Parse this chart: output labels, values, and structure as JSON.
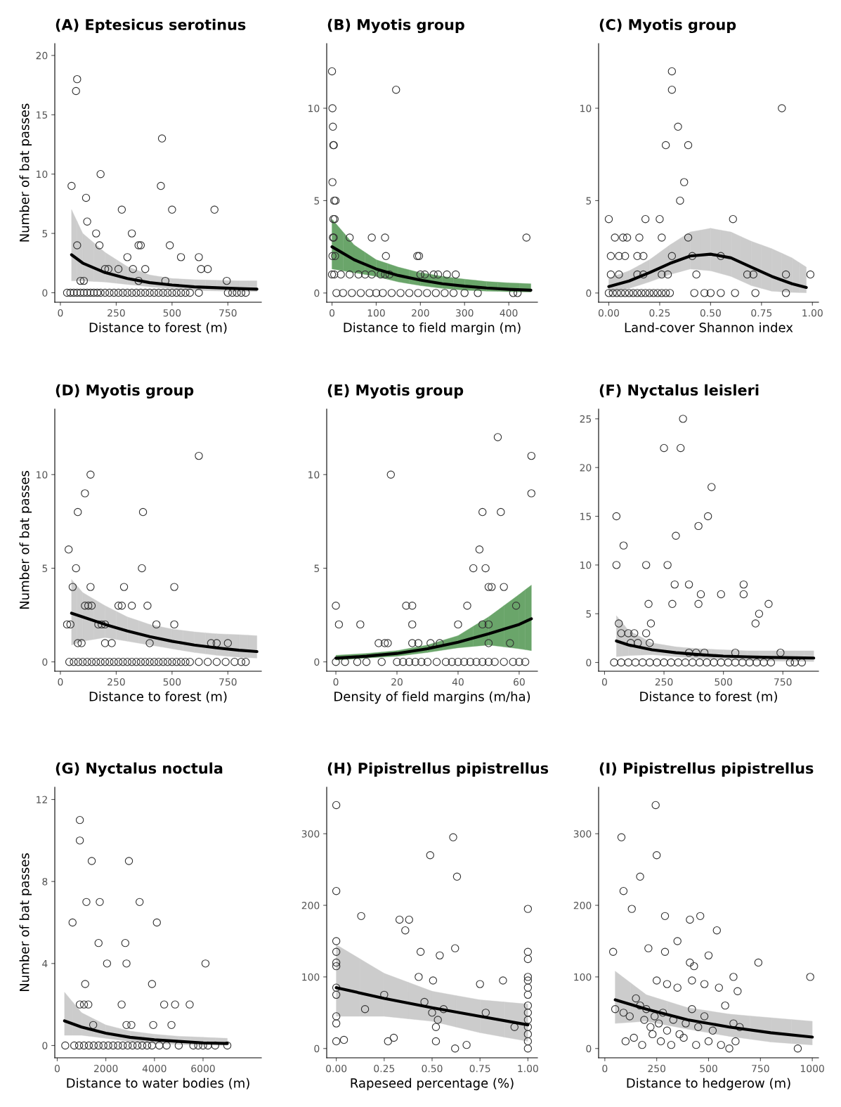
{
  "chart_data": [
    {
      "type": "scatter",
      "title": "(A) Eptesicus serotinus",
      "xlabel": "Distance to forest (m)",
      "ylabel": "Number of bat passes",
      "xlim": [
        -25,
        900
      ],
      "ylim": [
        -0.8,
        21
      ],
      "xticks": [
        0,
        250,
        500,
        750
      ],
      "yticks": [
        0,
        5,
        10,
        15,
        20
      ],
      "series": [
        {
          "marker": "circle",
          "color": "#333333",
          "x": [
            75,
            70,
            50,
            75,
            115,
            120,
            160,
            175,
            180,
            275,
            300,
            320,
            325,
            350,
            360,
            380,
            450,
            455,
            500,
            490,
            540,
            620,
            630,
            660,
            690,
            745,
            200,
            215,
            260,
            90,
            105,
            350,
            470,
            30,
            45,
            60,
            75,
            90,
            105,
            120,
            135,
            150,
            165,
            180,
            200,
            220,
            240,
            260,
            280,
            300,
            320,
            340,
            360,
            380,
            400,
            420,
            440,
            460,
            480,
            500,
            520,
            540,
            560,
            580,
            620,
            750,
            770,
            790,
            810,
            830
          ],
          "values": [
            18,
            17,
            9,
            4,
            8,
            6,
            5,
            4,
            10,
            7,
            3,
            5,
            2,
            4,
            4,
            2,
            9,
            13,
            7,
            4,
            3,
            3,
            2,
            2,
            7,
            1,
            2,
            2,
            2,
            1,
            1,
            1,
            1,
            0,
            0,
            0,
            0,
            0,
            0,
            0,
            0,
            0,
            0,
            0,
            0,
            0,
            0,
            0,
            0,
            0,
            0,
            0,
            0,
            0,
            0,
            0,
            0,
            0,
            0,
            0,
            0,
            0,
            0,
            0,
            0,
            0,
            0,
            0,
            0,
            0
          ]
        },
        {
          "type": "line",
          "color": "#000000",
          "colors": [
            "#cccccc",
            "#cccccc",
            "#cccccc",
            "#cccccc",
            "#cccccc",
            "#cccccc",
            "#cccccc",
            "#cccccc",
            "#cccccc",
            "#cccccc"
          ],
          "x": [
            50,
            100,
            200,
            300,
            400,
            500,
            600,
            700,
            800,
            880
          ],
          "values": [
            3.2,
            2.5,
            1.7,
            1.2,
            0.85,
            0.65,
            0.5,
            0.42,
            0.35,
            0.3
          ],
          "lower": [
            1.0,
            1.0,
            0.9,
            0.7,
            0.5,
            0.35,
            0.2,
            0.15,
            0.12,
            0.1
          ],
          "upper": [
            7.0,
            5.0,
            3.4,
            2.2,
            1.5,
            1.2,
            1.1,
            1.05,
            1.0,
            1.0
          ]
        }
      ]
    },
    {
      "type": "scatter",
      "title": "(B) Myotis group",
      "xlabel": "Distance to field margin (m)",
      "xlim": [
        -12,
        465
      ],
      "ylim": [
        -0.5,
        13.5
      ],
      "xticks": [
        0,
        100,
        200,
        300,
        400
      ],
      "yticks": [
        0,
        5,
        10
      ],
      "series": [
        {
          "marker": "circle",
          "color": "#333333",
          "x": [
            0,
            1,
            2,
            3,
            4,
            1,
            5,
            8,
            3,
            6,
            2,
            4,
            1,
            7,
            0,
            5,
            145,
            40,
            90,
            120,
            122,
            193,
            197,
            440,
            20,
            40,
            60,
            75,
            90,
            110,
            120,
            130,
            200,
            210,
            230,
            240,
            260,
            280,
            10,
            25,
            45,
            65,
            85,
            100,
            115,
            135,
            155,
            175,
            195,
            215,
            235,
            255,
            275,
            300,
            330,
            410,
            420
          ],
          "values": [
            12,
            10,
            9,
            8,
            8,
            6,
            5,
            5,
            4,
            4,
            3,
            3,
            2,
            2,
            1,
            1,
            11,
            3,
            3,
            3,
            2,
            2,
            2,
            3,
            1,
            1,
            1,
            1,
            1,
            1,
            1,
            1,
            1,
            1,
            1,
            1,
            1,
            1,
            0,
            0,
            0,
            0,
            0,
            0,
            0,
            0,
            0,
            0,
            0,
            0,
            0,
            0,
            0,
            0,
            0,
            0,
            0
          ]
        },
        {
          "type": "line",
          "color": "#000000",
          "colors": [
            "#6aa56a",
            "#6aa56a",
            "#6aa56a",
            "#6aa56a",
            "#6aa56a",
            "#6aa56a",
            "#6aa56a",
            "#6aa56a",
            "#6aa56a",
            "#6aa56a"
          ],
          "x": [
            0,
            50,
            100,
            150,
            200,
            250,
            300,
            350,
            400,
            450
          ],
          "values": [
            2.5,
            1.8,
            1.3,
            0.95,
            0.7,
            0.5,
            0.37,
            0.27,
            0.2,
            0.15
          ],
          "lower": [
            1.3,
            1.1,
            0.9,
            0.6,
            0.4,
            0.25,
            0.15,
            0.1,
            0.07,
            0.05
          ],
          "upper": [
            4.0,
            2.6,
            1.8,
            1.4,
            1.1,
            0.9,
            0.75,
            0.62,
            0.55,
            0.5
          ]
        }
      ]
    },
    {
      "type": "scatter",
      "title": "(C) Myotis group",
      "xlabel": "Land-cover Shannon index",
      "xlim": [
        -0.05,
        1.03
      ],
      "ylim": [
        -0.5,
        13.5
      ],
      "xticks": [
        {
          "value": 0,
          "label": "0.00"
        },
        {
          "value": 0.25,
          "label": "0.25"
        },
        {
          "value": 0.5,
          "label": "0.50"
        },
        {
          "value": 0.75,
          "label": "0.75"
        },
        {
          "value": 1,
          "label": "1.00"
        }
      ],
      "yticks": [
        0,
        5,
        10
      ],
      "series": [
        {
          "marker": "circle",
          "color": "#333333",
          "x": [
            0.31,
            0.31,
            0.85,
            0.34,
            0.28,
            0.39,
            0.37,
            0.35,
            0.0,
            0.18,
            0.25,
            0.61,
            0.03,
            0.07,
            0.09,
            0.15,
            0.26,
            0.39,
            0.01,
            0.05,
            0.08,
            0.14,
            0.17,
            0.31,
            0.41,
            0.55,
            0.01,
            0.05,
            0.14,
            0.17,
            0.26,
            0.29,
            0.43,
            0.68,
            0.71,
            0.87,
            0.99,
            0.0,
            0.02,
            0.04,
            0.06,
            0.08,
            0.1,
            0.12,
            0.14,
            0.16,
            0.18,
            0.2,
            0.22,
            0.24,
            0.26,
            0.28,
            0.3,
            0.42,
            0.47,
            0.5,
            0.55,
            0.62,
            0.72,
            0.87
          ],
          "values": [
            12,
            11,
            10,
            9,
            8,
            8,
            6,
            5,
            4,
            4,
            4,
            4,
            3,
            3,
            3,
            3,
            3,
            3,
            2,
            2,
            2,
            2,
            2,
            2,
            2,
            2,
            1,
            1,
            1,
            1,
            1,
            1,
            1,
            1,
            1,
            1,
            1,
            0,
            0,
            0,
            0,
            0,
            0,
            0,
            0,
            0,
            0,
            0,
            0,
            0,
            0,
            0,
            0,
            0,
            0,
            0,
            0,
            0,
            0,
            0
          ]
        },
        {
          "type": "line",
          "color": "#000000",
          "colors": [
            "#cccccc",
            "#cccccc",
            "#cccccc",
            "#cccccc",
            "#cccccc",
            "#cccccc",
            "#cccccc",
            "#cccccc",
            "#cccccc",
            "#cccccc",
            "#cccccc"
          ],
          "x": [
            0,
            0.1,
            0.2,
            0.3,
            0.4,
            0.5,
            0.6,
            0.7,
            0.8,
            0.9,
            0.97
          ],
          "values": [
            0.35,
            0.65,
            1.1,
            1.6,
            2.0,
            2.1,
            1.9,
            1.4,
            0.9,
            0.5,
            0.3
          ],
          "lower": [
            0.05,
            0.25,
            0.6,
            1.0,
            1.3,
            1.2,
            0.9,
            0.4,
            0.1,
            0.03,
            0.01
          ],
          "upper": [
            0.8,
            1.2,
            1.8,
            2.6,
            3.3,
            3.5,
            3.3,
            2.8,
            2.4,
            1.9,
            1.4
          ]
        }
      ]
    },
    {
      "type": "scatter",
      "title": "(D) Myotis group",
      "xlabel": "Distance to forest (m)",
      "ylabel": "Number of bat passes",
      "xlim": [
        -25,
        900
      ],
      "ylim": [
        -0.5,
        13.5
      ],
      "xticks": [
        0,
        250,
        500,
        750
      ],
      "yticks": [
        0,
        5,
        10
      ],
      "series": [
        {
          "marker": "circle",
          "color": "#333333",
          "x": [
            37,
            55,
            78,
            70,
            110,
            135,
            135,
            110,
            125,
            140,
            30,
            45,
            170,
            185,
            200,
            78,
            95,
            200,
            230,
            260,
            275,
            285,
            320,
            370,
            365,
            390,
            430,
            400,
            510,
            510,
            620,
            675,
            700,
            750,
            40,
            60,
            80,
            100,
            120,
            140,
            160,
            180,
            200,
            220,
            240,
            260,
            280,
            300,
            320,
            340,
            360,
            380,
            400,
            420,
            440,
            460,
            480,
            500,
            520,
            540,
            560,
            580,
            620,
            660,
            700,
            740,
            780,
            810,
            830
          ],
          "values": [
            6,
            4,
            8,
            5,
            9,
            10,
            4,
            3,
            3,
            3,
            2,
            2,
            2,
            2,
            2,
            1,
            1,
            1,
            1,
            3,
            3,
            4,
            3,
            8,
            5,
            3,
            2,
            1,
            4,
            2,
            11,
            1,
            1,
            1,
            0,
            0,
            0,
            0,
            0,
            0,
            0,
            0,
            0,
            0,
            0,
            0,
            0,
            0,
            0,
            0,
            0,
            0,
            0,
            0,
            0,
            0,
            0,
            0,
            0,
            0,
            0,
            0,
            0,
            0,
            0,
            0,
            0,
            0,
            0
          ]
        },
        {
          "type": "line",
          "color": "#000000",
          "colors": [
            "#cccccc",
            "#cccccc",
            "#cccccc",
            "#cccccc",
            "#cccccc",
            "#cccccc",
            "#cccccc",
            "#cccccc",
            "#cccccc",
            "#cccccc"
          ],
          "x": [
            50,
            100,
            200,
            300,
            400,
            500,
            600,
            700,
            800,
            880
          ],
          "values": [
            2.6,
            2.4,
            2.0,
            1.65,
            1.35,
            1.1,
            0.9,
            0.75,
            0.62,
            0.55
          ],
          "lower": [
            0.9,
            1.1,
            1.3,
            1.1,
            0.9,
            0.7,
            0.5,
            0.35,
            0.25,
            0.2
          ],
          "upper": [
            4.4,
            3.7,
            3.0,
            2.4,
            2.0,
            1.75,
            1.6,
            1.5,
            1.45,
            1.4
          ]
        }
      ]
    },
    {
      "type": "scatter",
      "title": "(E) Myotis group",
      "xlabel": "Density of field margins (m/ha)",
      "xlim": [
        -3,
        66
      ],
      "ylim": [
        -0.5,
        13.5
      ],
      "xticks": [
        0,
        20,
        40,
        60
      ],
      "yticks": [
        0,
        5,
        10
      ],
      "series": [
        {
          "marker": "circle",
          "color": "#333333",
          "x": [
            0,
            1,
            8,
            18,
            14,
            16,
            17,
            23,
            25,
            25,
            25,
            27,
            31,
            34,
            40,
            43,
            45,
            47,
            48,
            49,
            50,
            51,
            48,
            50,
            53,
            54,
            55,
            57,
            59,
            64,
            64,
            50,
            0,
            3,
            7,
            10,
            15,
            20,
            22,
            24,
            26,
            28,
            30,
            33,
            36,
            38,
            40,
            42,
            44,
            46,
            48,
            50,
            52,
            55,
            58,
            60,
            62
          ],
          "values": [
            3,
            2,
            2,
            10,
            1,
            1,
            1,
            3,
            3,
            2,
            1,
            1,
            1,
            1,
            2,
            3,
            5,
            6,
            8,
            5,
            4,
            4,
            2,
            2,
            12,
            8,
            4,
            1,
            3,
            11,
            9,
            1,
            0,
            0,
            0,
            0,
            0,
            0,
            0,
            0,
            0,
            0,
            0,
            0,
            0,
            0,
            0,
            0,
            0,
            0,
            0,
            0,
            0,
            0,
            0,
            0,
            0
          ]
        },
        {
          "type": "line",
          "color": "#000000",
          "colors": [
            "#6aa56a",
            "#6aa56a",
            "#6aa56a",
            "#6aa56a",
            "#6aa56a",
            "#6aa56a",
            "#6aa56a",
            "#6aa56a"
          ],
          "x": [
            0,
            10,
            20,
            30,
            40,
            50,
            60,
            64
          ],
          "values": [
            0.2,
            0.3,
            0.45,
            0.7,
            1.05,
            1.5,
            2.0,
            2.3
          ],
          "lower": [
            0.1,
            0.2,
            0.3,
            0.5,
            0.75,
            0.9,
            0.7,
            0.6
          ],
          "upper": [
            0.35,
            0.45,
            0.6,
            0.9,
            1.4,
            2.4,
            3.6,
            4.1
          ]
        }
      ]
    },
    {
      "type": "scatter",
      "title": "(F) Nyctalus leisleri",
      "xlabel": "Distance to forest (m)",
      "xlim": [
        -25,
        900
      ],
      "ylim": [
        -0.9,
        26
      ],
      "xticks": [
        0,
        250,
        500,
        750
      ],
      "yticks": [
        0,
        5,
        10,
        15,
        20,
        25
      ],
      "series": [
        {
          "marker": "circle",
          "color": "#333333",
          "x": [
            330,
            250,
            320,
            450,
            435,
            50,
            395,
            300,
            80,
            50,
            175,
            265,
            295,
            355,
            585,
            405,
            490,
            185,
            285,
            395,
            585,
            690,
            650,
            60,
            195,
            635,
            70,
            100,
            125,
            175,
            110,
            140,
            190,
            355,
            385,
            420,
            550,
            740,
            40,
            70,
            100,
            130,
            160,
            190,
            220,
            250,
            280,
            310,
            340,
            370,
            400,
            430,
            460,
            490,
            520,
            550,
            580,
            610,
            640,
            670,
            700,
            780,
            800,
            830
          ],
          "values": [
            25,
            22,
            22,
            18,
            15,
            15,
            14,
            13,
            12,
            10,
            10,
            10,
            8,
            8,
            8,
            7,
            7,
            6,
            6,
            6,
            7,
            6,
            5,
            4,
            4,
            4,
            3,
            3,
            3,
            3,
            2,
            2,
            2,
            1,
            1,
            1,
            1,
            1,
            0,
            0,
            0,
            0,
            0,
            0,
            0,
            0,
            0,
            0,
            0,
            0,
            0,
            0,
            0,
            0,
            0,
            0,
            0,
            0,
            0,
            0,
            0,
            0,
            0,
            0
          ]
        },
        {
          "type": "line",
          "color": "#000000",
          "colors": [
            "#cccccc",
            "#cccccc",
            "#cccccc",
            "#cccccc",
            "#cccccc",
            "#cccccc",
            "#cccccc",
            "#cccccc",
            "#cccccc",
            "#cccccc"
          ],
          "x": [
            50,
            100,
            200,
            300,
            400,
            500,
            600,
            700,
            800,
            880
          ],
          "values": [
            2.2,
            1.8,
            1.3,
            1.0,
            0.8,
            0.65,
            0.58,
            0.52,
            0.48,
            0.45
          ],
          "lower": [
            0.6,
            0.7,
            0.8,
            0.6,
            0.4,
            0.3,
            0.2,
            0.15,
            0.12,
            0.1
          ],
          "upper": [
            4.8,
            3.3,
            2.0,
            1.6,
            1.4,
            1.3,
            1.2,
            1.2,
            1.2,
            1.2
          ]
        }
      ]
    },
    {
      "type": "scatter",
      "title": "(G) Nyctalus noctula",
      "xlabel": "Distance to water bodies (m)",
      "ylabel": "Number of bat passes",
      "xlim": [
        -100,
        8400
      ],
      "ylim": [
        -0.6,
        12.6
      ],
      "xticks": [
        0,
        2000,
        4000,
        6000
      ],
      "yticks": [
        0,
        4,
        8,
        12
      ],
      "series": [
        {
          "marker": "circle",
          "color": "#333333",
          "x": [
            930,
            930,
            1420,
            2950,
            1200,
            1750,
            3390,
            630,
            4100,
            1700,
            2800,
            2050,
            2850,
            6100,
            1150,
            3900,
            930,
            1100,
            1280,
            2650,
            4400,
            4850,
            5450,
            1480,
            2850,
            3050,
            3950,
            4700,
            330,
            700,
            900,
            1100,
            1300,
            1500,
            1700,
            1900,
            2100,
            2300,
            2500,
            2700,
            2900,
            3100,
            3300,
            3500,
            3700,
            3900,
            4200,
            4500,
            5000,
            5600,
            5800,
            6000,
            6200,
            6500,
            7000
          ],
          "values": [
            11,
            10,
            9,
            9,
            7,
            7,
            7,
            6,
            6,
            5,
            5,
            4,
            4,
            4,
            3,
            3,
            2,
            2,
            2,
            2,
            2,
            2,
            2,
            1,
            1,
            1,
            1,
            1,
            0,
            0,
            0,
            0,
            0,
            0,
            0,
            0,
            0,
            0,
            0,
            0,
            0,
            0,
            0,
            0,
            0,
            0,
            0,
            0,
            0,
            0,
            0,
            0,
            0,
            0,
            0
          ]
        },
        {
          "type": "line",
          "color": "#000000",
          "colors": [
            "#cccccc",
            "#cccccc",
            "#cccccc",
            "#cccccc",
            "#cccccc",
            "#cccccc",
            "#cccccc",
            "#cccccc"
          ],
          "x": [
            300,
            1000,
            2000,
            3000,
            4000,
            5000,
            6000,
            7000
          ],
          "values": [
            1.2,
            0.9,
            0.6,
            0.4,
            0.28,
            0.2,
            0.13,
            0.1
          ],
          "lower": [
            0.5,
            0.5,
            0.35,
            0.2,
            0.1,
            0.05,
            0.02,
            0.01
          ],
          "upper": [
            2.6,
            1.6,
            1.0,
            0.7,
            0.55,
            0.45,
            0.4,
            0.35
          ]
        }
      ]
    },
    {
      "type": "scatter",
      "title": "(H) Pipistrellus pipistrellus",
      "xlabel": "Rapeseed percentage (%)",
      "xlim": [
        -0.05,
        1.05
      ],
      "ylim": [
        -13,
        365
      ],
      "xticks": [
        {
          "value": 0,
          "label": "0.00"
        },
        {
          "value": 0.25,
          "label": "0.25"
        },
        {
          "value": 0.5,
          "label": "0.50"
        },
        {
          "value": 0.75,
          "label": "0.75"
        },
        {
          "value": 1,
          "label": "1.00"
        }
      ],
      "yticks": [
        0,
        100,
        200,
        300
      ],
      "series": [
        {
          "marker": "circle",
          "color": "#333333",
          "x": [
            0,
            0,
            0,
            0,
            0,
            0,
            0,
            0,
            0,
            0,
            0,
            0.04,
            0.13,
            0.15,
            0.33,
            0.36,
            0.38,
            0.25,
            0.27,
            0.3,
            0.44,
            0.43,
            0.46,
            0.49,
            0.5,
            0.505,
            0.52,
            0.53,
            0.54,
            0.52,
            0.56,
            0.63,
            0.62,
            0.61,
            0.62,
            0.75,
            0.68,
            0.78,
            0.87,
            0.93,
            1,
            1,
            1,
            1,
            1,
            1,
            1,
            1,
            1,
            1,
            1,
            1,
            1,
            1
          ],
          "values": [
            340,
            220,
            150,
            135,
            120,
            115,
            85,
            75,
            45,
            35,
            10,
            12,
            185,
            55,
            180,
            165,
            180,
            75,
            10,
            15,
            135,
            100,
            65,
            270,
            50,
            95,
            30,
            40,
            130,
            10,
            55,
            240,
            140,
            295,
            0,
            90,
            5,
            50,
            95,
            30,
            195,
            135,
            125,
            100,
            95,
            85,
            75,
            60,
            50,
            40,
            30,
            20,
            10,
            0
          ]
        },
        {
          "type": "line",
          "color": "#000000",
          "colors": [
            "#cccccc",
            "#cccccc",
            "#cccccc",
            "#cccccc",
            "#cccccc"
          ],
          "x": [
            0,
            0.25,
            0.5,
            0.75,
            1
          ],
          "values": [
            85,
            70,
            57,
            45,
            33
          ],
          "lower": [
            45,
            45,
            38,
            22,
            10
          ],
          "upper": [
            145,
            105,
            80,
            68,
            62
          ]
        }
      ]
    },
    {
      "type": "scatter",
      "title": "(I) Pipistrellus pipistrellus",
      "xlabel": "Distance to hedgerow (m)",
      "xlim": [
        -30,
        1030
      ],
      "ylim": [
        -13,
        365
      ],
      "xticks": [
        0,
        250,
        500,
        750,
        1000
      ],
      "yticks": [
        0,
        100,
        200,
        300
      ],
      "series": [
        {
          "marker": "circle",
          "color": "#333333",
          "x": [
            245,
            80,
            90,
            250,
            170,
            130,
            290,
            410,
            460,
            540,
            350,
            210,
            40,
            290,
            500,
            740,
            410,
            430,
            990,
            250,
            300,
            350,
            420,
            480,
            550,
            620,
            640,
            50,
            90,
            120,
            150,
            170,
            190,
            200,
            220,
            240,
            260,
            280,
            300,
            330,
            360,
            390,
            420,
            450,
            480,
            520,
            580,
            620,
            650,
            100,
            140,
            180,
            230,
            270,
            320,
            380,
            440,
            500,
            560,
            600,
            630,
            930
          ],
          "values": [
            340,
            295,
            220,
            270,
            240,
            195,
            185,
            180,
            185,
            165,
            150,
            140,
            135,
            135,
            130,
            120,
            120,
            115,
            100,
            95,
            90,
            85,
            95,
            90,
            85,
            100,
            80,
            55,
            50,
            45,
            70,
            60,
            40,
            55,
            30,
            45,
            35,
            50,
            25,
            40,
            20,
            35,
            55,
            30,
            45,
            25,
            60,
            35,
            30,
            10,
            15,
            5,
            20,
            10,
            5,
            15,
            5,
            10,
            5,
            0,
            10,
            0
          ]
        },
        {
          "type": "line",
          "color": "#000000",
          "colors": [
            "#cccccc",
            "#cccccc",
            "#cccccc",
            "#cccccc",
            "#cccccc",
            "#cccccc"
          ],
          "x": [
            50,
            200,
            400,
            600,
            800,
            1000
          ],
          "values": [
            68,
            55,
            40,
            30,
            22,
            16
          ],
          "lower": [
            35,
            38,
            27,
            17,
            9,
            5
          ],
          "upper": [
            108,
            75,
            57,
            48,
            43,
            38
          ]
        }
      ]
    }
  ]
}
